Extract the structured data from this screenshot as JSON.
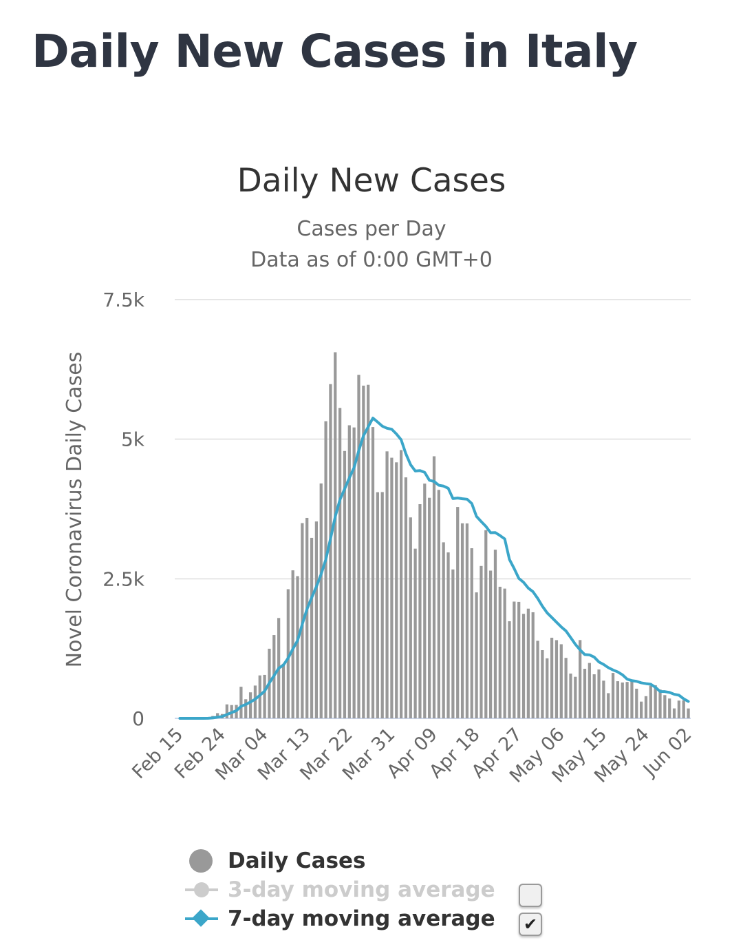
{
  "page": {
    "title": "Daily New Cases in Italy"
  },
  "chart_data": {
    "type": "bar",
    "title": "Daily New Cases",
    "subtitle": "Cases per Day",
    "subtitle2": "Data as of 0:00 GMT+0",
    "ylabel": "Novel Coronavirus Daily Cases",
    "ylim": [
      0,
      7500
    ],
    "yticks": [
      {
        "value": 0,
        "label": "0"
      },
      {
        "value": 2500,
        "label": "2.5k"
      },
      {
        "value": 5000,
        "label": "5k"
      },
      {
        "value": 7500,
        "label": "7.5k"
      }
    ],
    "xtick_labels": [
      "Feb 15",
      "Feb 24",
      "Mar 04",
      "Mar 13",
      "Mar 22",
      "Mar 31",
      "Apr 09",
      "Apr 18",
      "Apr 27",
      "May 06",
      "May 15",
      "May 24",
      "Jun 02"
    ],
    "start_date": "Feb 15",
    "series": [
      {
        "name": "Daily Cases",
        "type": "bar",
        "color": "#999999",
        "values": [
          0,
          0,
          0,
          0,
          0,
          0,
          17,
          42,
          93,
          78,
          250,
          238,
          240,
          566,
          342,
          466,
          587,
          769,
          778,
          1247,
          1492,
          1797,
          977,
          2313,
          2651,
          2547,
          3497,
          3590,
          3233,
          3526,
          4207,
          5322,
          5986,
          6557,
          5560,
          4789,
          5249,
          5210,
          6153,
          5959,
          5974,
          5217,
          4050,
          4053,
          4782,
          4668,
          4585,
          4805,
          4316,
          3599,
          3039,
          3836,
          4204,
          3951,
          4694,
          4092,
          3153,
          2972,
          2667,
          3786,
          3493,
          3491,
          3047,
          2256,
          2729,
          3370,
          2646,
          3021,
          2357,
          2324,
          1739,
          2091,
          2086,
          1872,
          1965,
          1900,
          1389,
          1221,
          1075,
          1444,
          1401,
          1327,
          1083,
          802,
          744,
          1402,
          888,
          992,
          789,
          875,
          675,
          451,
          813,
          665,
          642,
          652,
          669,
          531,
          300,
          397,
          584,
          593,
          516,
          416,
          355,
          178,
          318,
          321,
          177
        ]
      },
      {
        "name": "3-day moving average",
        "type": "line",
        "color": "#cccccc",
        "visible": false
      },
      {
        "name": "7-day moving average",
        "type": "line",
        "color": "#3ba6c9",
        "values": [
          0,
          0,
          0,
          0,
          0,
          0,
          2,
          8,
          21,
          33,
          69,
          103,
          137,
          215,
          249,
          293,
          343,
          413,
          487,
          634,
          764,
          897,
          955,
          1079,
          1242,
          1392,
          1686,
          1955,
          2163,
          2358,
          2581,
          2844,
          3218,
          3611,
          3915,
          4108,
          4307,
          4491,
          4794,
          5062,
          5221,
          5378,
          5307,
          5233,
          5196,
          5178,
          5093,
          4990,
          4739,
          4544,
          4430,
          4438,
          4405,
          4264,
          4242,
          4175,
          4160,
          4121,
          3936,
          3946,
          3933,
          3925,
          3848,
          3617,
          3525,
          3438,
          3325,
          3327,
          3274,
          3214,
          2846,
          2684,
          2506,
          2436,
          2333,
          2268,
          2149,
          2008,
          1890,
          1806,
          1722,
          1638,
          1566,
          1448,
          1326,
          1226,
          1142,
          1137,
          1097,
          1010,
          965,
          908,
          866,
          832,
          780,
          702,
          675,
          663,
          636,
          622,
          611,
          556,
          481,
          479,
          464,
          431,
          415,
          350,
          303
        ]
      }
    ],
    "legend": [
      {
        "label": "Daily Cases",
        "checkbox": null
      },
      {
        "label": "3-day moving average",
        "checkbox": false
      },
      {
        "label": "7-day moving average",
        "checkbox": true
      }
    ],
    "checkbox_checked_glyph": "✔",
    "legend_position": "bottom"
  }
}
